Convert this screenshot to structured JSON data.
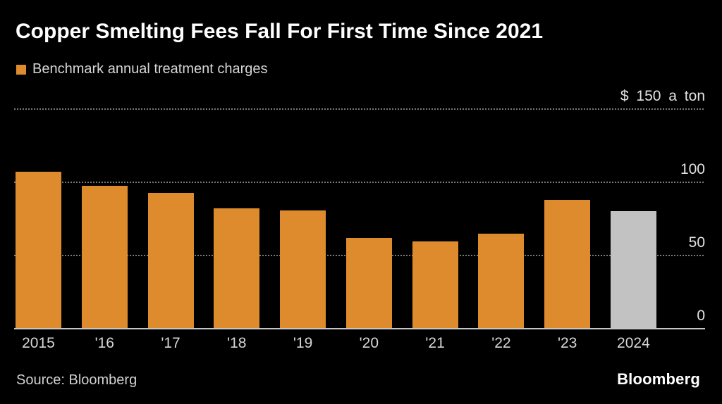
{
  "header": {
    "title": "Copper Smelting Fees Fall For First Time Since 2021",
    "legend": {
      "label": "Benchmark annual treatment charges",
      "swatch_color": "#DD8B2C"
    }
  },
  "chart_data": {
    "type": "bar",
    "title": "Copper Smelting Fees Fall For First Time Since 2021",
    "series_name": "Benchmark annual treatment charges",
    "categories": [
      "2015",
      "'16",
      "'17",
      "'18",
      "'19",
      "'20",
      "'21",
      "'22",
      "'23",
      "2024"
    ],
    "values": [
      107,
      97.35,
      92.5,
      82.25,
      80.8,
      62,
      59.5,
      65,
      88,
      80
    ],
    "unit_label": "$ 150 a ton",
    "ylabel": "",
    "xlabel": "",
    "ylim": [
      0,
      150
    ],
    "y_ticks": [
      {
        "value": 150,
        "label": "$ 150 a ton"
      },
      {
        "value": 100,
        "label": "100"
      },
      {
        "value": 50,
        "label": "50"
      },
      {
        "value": 0,
        "label": "0"
      }
    ],
    "grid": "horizontal-dotted",
    "legend_position": "top-left",
    "bar_color": "#DD8B2C",
    "highlight_index": 9,
    "highlight_color": "#C2C2C2",
    "gridline_color": "#7a7a7a",
    "baseline_color": "#c6c6c6",
    "background_color": "#000000"
  },
  "footer": {
    "source": "Source: Bloomberg",
    "brand": "Bloomberg"
  }
}
